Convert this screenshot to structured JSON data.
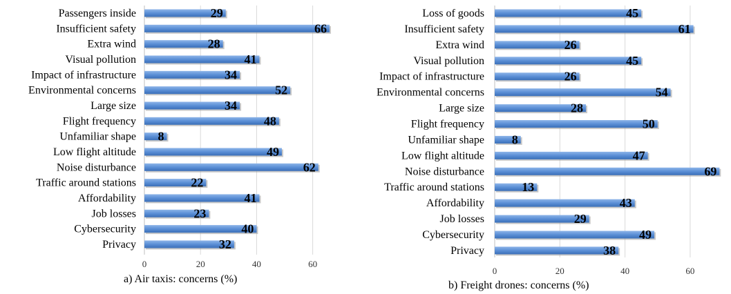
{
  "colors": {
    "bar": "#5B8FD6",
    "bar_light": "#8DB4E8",
    "bar_dark": "#3A6FB8",
    "grid": "#D9D9D9",
    "axis": "#BFBFBF"
  },
  "chart_data": [
    {
      "type": "bar",
      "orientation": "horizontal",
      "caption": "a) Air taxis: concerns (%)",
      "categories": [
        "Passengers inside",
        "Insufficient safety",
        "Extra wind",
        "Visual pollution",
        "Impact of infrastructure",
        "Environmental concerns",
        "Large size",
        "Flight frequency",
        "Unfamiliar shape",
        "Low flight altitude",
        "Noise disturbance ",
        "Traffic around stations",
        "Affordability",
        "Job losses",
        "Cybersecurity",
        "Privacy"
      ],
      "values": [
        29,
        66,
        28,
        41,
        34,
        52,
        34,
        48,
        8,
        49,
        62,
        22,
        41,
        23,
        40,
        32
      ],
      "xlim": [
        0,
        67
      ],
      "ticks": [
        0,
        20,
        40,
        60
      ],
      "grid": true,
      "legend": "none"
    },
    {
      "type": "bar",
      "orientation": "horizontal",
      "caption": "b) Freight drones: concerns (%)",
      "categories": [
        "Loss of goods",
        "Insufficient safety",
        "Extra wind",
        "Visual pollution",
        "Impact of infrastructure",
        "Environmental concerns",
        "Large size",
        "Flight frequency",
        "Unfamiliar shape",
        "Low flight altitude",
        "Noise disturbance ",
        "Traffic around stations",
        "Affordability",
        "Job losses",
        "Cybersecurity",
        "Privacy"
      ],
      "values": [
        45,
        61,
        26,
        45,
        26,
        54,
        28,
        50,
        8,
        47,
        69,
        13,
        43,
        29,
        49,
        38
      ],
      "xlim": [
        0,
        70
      ],
      "ticks": [
        0,
        20,
        40,
        60
      ],
      "grid": true,
      "legend": "none"
    }
  ]
}
